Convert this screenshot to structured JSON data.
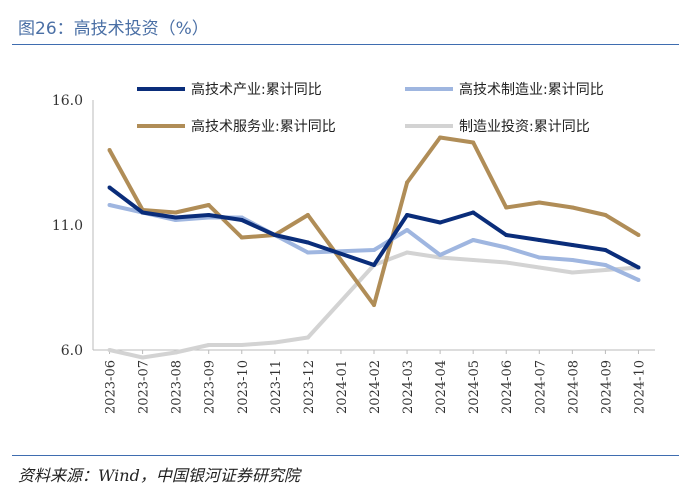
{
  "figure": {
    "title": "图26：高技术投资（%）",
    "source": "资料来源：Wind，中国银河证券研究院"
  },
  "chart_data": {
    "type": "line",
    "title": "",
    "xlabel": "",
    "ylabel": "",
    "ylim": [
      6.0,
      16.0
    ],
    "yticks": [
      "16.0",
      "11.0",
      "6.0"
    ],
    "grid": false,
    "legend_position": "top",
    "categories": [
      "2023-06",
      "2023-07",
      "2023-08",
      "2023-09",
      "2023-10",
      "2023-11",
      "2023-12",
      "2024-01",
      "2024-02",
      "2024-03",
      "2024-04",
      "2024-05",
      "2024-06",
      "2024-07",
      "2024-08",
      "2024-09",
      "2024-10"
    ],
    "series": [
      {
        "name": "高技术产业:累计同比",
        "color": "#0a2d7a",
        "values": [
          12.5,
          11.5,
          11.3,
          11.4,
          11.2,
          10.6,
          10.3,
          null,
          9.4,
          11.4,
          11.1,
          11.5,
          10.6,
          10.4,
          10.2,
          10.0,
          9.3
        ]
      },
      {
        "name": "高技术制造业:累计同比",
        "color": "#9fb6e0",
        "values": [
          11.8,
          11.5,
          11.2,
          11.3,
          11.3,
          10.6,
          9.9,
          null,
          10.0,
          10.8,
          9.8,
          10.4,
          10.1,
          9.7,
          9.6,
          9.4,
          8.8
        ]
      },
      {
        "name": "高技术服务业:累计同比",
        "color": "#b08d57",
        "values": [
          14.0,
          11.6,
          11.5,
          11.8,
          10.5,
          10.6,
          11.4,
          null,
          7.8,
          12.7,
          14.5,
          14.3,
          11.7,
          11.9,
          11.7,
          11.4,
          10.6
        ]
      },
      {
        "name": "制造业投资:累计同比",
        "color": "#d3d3d3",
        "values": [
          6.0,
          5.7,
          5.9,
          6.2,
          6.2,
          6.3,
          6.5,
          null,
          9.4,
          9.9,
          9.7,
          9.6,
          9.5,
          9.3,
          9.1,
          9.2,
          9.3
        ]
      }
    ]
  }
}
